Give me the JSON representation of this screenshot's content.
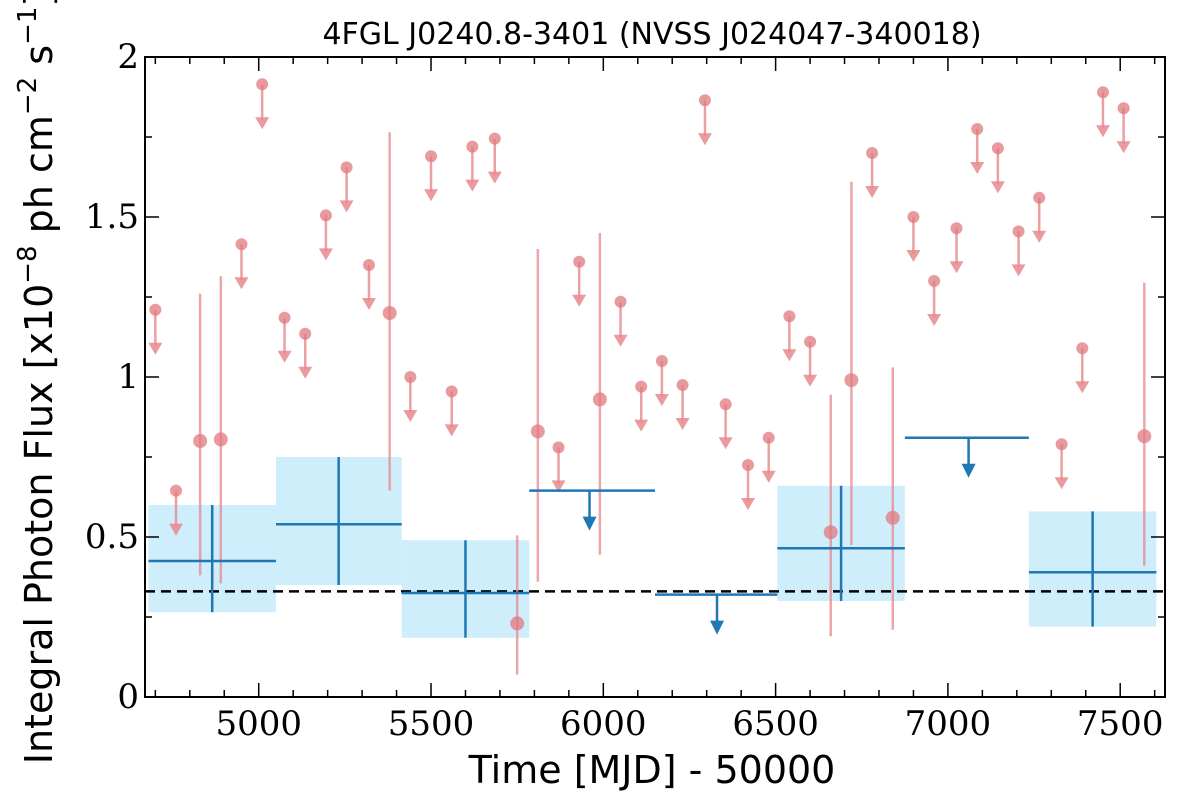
{
  "chart_data": {
    "type": "scatter",
    "title": "4FGL J0240.8-3401 (NVSS J024047-340018)",
    "xlabel": "Time [MJD] - 50000",
    "ylabel_main": "Integral Photon Flux [x10",
    "ylabel_exp1": "−8",
    "ylabel_mid": " ph cm",
    "ylabel_exp2": "−2",
    "ylabel_mid2": " s",
    "ylabel_exp3": "−1",
    "ylabel_end": "]",
    "xlim": [
      4670,
      7630
    ],
    "ylim": [
      0,
      2
    ],
    "x_ticks": [
      5000,
      5500,
      6000,
      6500,
      7000,
      7500
    ],
    "x_tick_labels": [
      "5000",
      "5500",
      "6000",
      "6500",
      "7000",
      "7500"
    ],
    "y_ticks": [
      0,
      0.5,
      1,
      1.5,
      2
    ],
    "y_tick_labels": [
      "0",
      "0.5",
      "1",
      "1.5",
      "2"
    ],
    "colors": {
      "monthly": "#e8888c",
      "monthly_point": "#e07a7f",
      "yearly": "#1f77b4",
      "yearly_band": "#cfeefc",
      "average": "#000000"
    },
    "average_flux": 0.33,
    "monthly_upper_limits": [
      {
        "x": 4700,
        "y": 1.21
      },
      {
        "x": 4760,
        "y": 0.645
      },
      {
        "x": 4950,
        "y": 1.415
      },
      {
        "x": 5010,
        "y": 1.915
      },
      {
        "x": 5075,
        "y": 1.185
      },
      {
        "x": 5135,
        "y": 1.135
      },
      {
        "x": 5195,
        "y": 1.505
      },
      {
        "x": 5255,
        "y": 1.655
      },
      {
        "x": 5320,
        "y": 1.35
      },
      {
        "x": 5440,
        "y": 1.0
      },
      {
        "x": 5500,
        "y": 1.69
      },
      {
        "x": 5560,
        "y": 0.955
      },
      {
        "x": 5620,
        "y": 1.72
      },
      {
        "x": 5685,
        "y": 1.745
      },
      {
        "x": 5870,
        "y": 0.78
      },
      {
        "x": 5930,
        "y": 1.36
      },
      {
        "x": 6050,
        "y": 1.235
      },
      {
        "x": 6110,
        "y": 0.97
      },
      {
        "x": 6170,
        "y": 1.05
      },
      {
        "x": 6230,
        "y": 0.975
      },
      {
        "x": 6295,
        "y": 1.865
      },
      {
        "x": 6355,
        "y": 0.915
      },
      {
        "x": 6420,
        "y": 0.725
      },
      {
        "x": 6480,
        "y": 0.81
      },
      {
        "x": 6540,
        "y": 1.19
      },
      {
        "x": 6600,
        "y": 1.11
      },
      {
        "x": 6780,
        "y": 1.7
      },
      {
        "x": 6900,
        "y": 1.5
      },
      {
        "x": 6960,
        "y": 1.3
      },
      {
        "x": 7025,
        "y": 1.465
      },
      {
        "x": 7085,
        "y": 1.775
      },
      {
        "x": 7145,
        "y": 1.715
      },
      {
        "x": 7205,
        "y": 1.455
      },
      {
        "x": 7265,
        "y": 1.56
      },
      {
        "x": 7330,
        "y": 0.79
      },
      {
        "x": 7390,
        "y": 1.09
      },
      {
        "x": 7450,
        "y": 1.89
      },
      {
        "x": 7510,
        "y": 1.84
      }
    ],
    "monthly_detections": [
      {
        "x": 4830,
        "y": 0.8,
        "ylo": 0.38,
        "yhi": 1.26
      },
      {
        "x": 4890,
        "y": 0.805,
        "ylo": 0.355,
        "yhi": 1.315
      },
      {
        "x": 5380,
        "y": 1.2,
        "ylo": 0.645,
        "yhi": 1.765
      },
      {
        "x": 5750,
        "y": 0.23,
        "ylo": 0.07,
        "yhi": 0.505
      },
      {
        "x": 5810,
        "y": 0.83,
        "ylo": 0.36,
        "yhi": 1.4
      },
      {
        "x": 5990,
        "y": 0.93,
        "ylo": 0.445,
        "yhi": 1.45
      },
      {
        "x": 6660,
        "y": 0.515,
        "ylo": 0.19,
        "yhi": 0.945
      },
      {
        "x": 6720,
        "y": 0.99,
        "ylo": 0.475,
        "yhi": 1.61
      },
      {
        "x": 6840,
        "y": 0.56,
        "ylo": 0.21,
        "yhi": 1.03
      },
      {
        "x": 7570,
        "y": 0.815,
        "ylo": 0.41,
        "yhi": 1.295
      }
    ],
    "yearly_detections": [
      {
        "x0": 4680,
        "x1": 5050,
        "xc": 4865,
        "y": 0.425,
        "ylo": 0.265,
        "yhi": 0.6
      },
      {
        "x0": 5050,
        "x1": 5415,
        "xc": 5232,
        "y": 0.54,
        "ylo": 0.35,
        "yhi": 0.75
      },
      {
        "x0": 5415,
        "x1": 5785,
        "xc": 5600,
        "y": 0.325,
        "ylo": 0.185,
        "yhi": 0.49
      },
      {
        "x0": 6505,
        "x1": 6875,
        "xc": 6690,
        "y": 0.465,
        "ylo": 0.3,
        "yhi": 0.66
      },
      {
        "x0": 7235,
        "x1": 7605,
        "xc": 7420,
        "y": 0.39,
        "ylo": 0.22,
        "yhi": 0.58
      }
    ],
    "yearly_upper_limits": [
      {
        "x0": 5785,
        "x1": 6150,
        "xc": 5960,
        "y": 0.645
      },
      {
        "x0": 6150,
        "x1": 6505,
        "xc": 6330,
        "y": 0.32
      },
      {
        "x0": 6875,
        "x1": 7235,
        "xc": 7060,
        "y": 0.81
      }
    ]
  }
}
